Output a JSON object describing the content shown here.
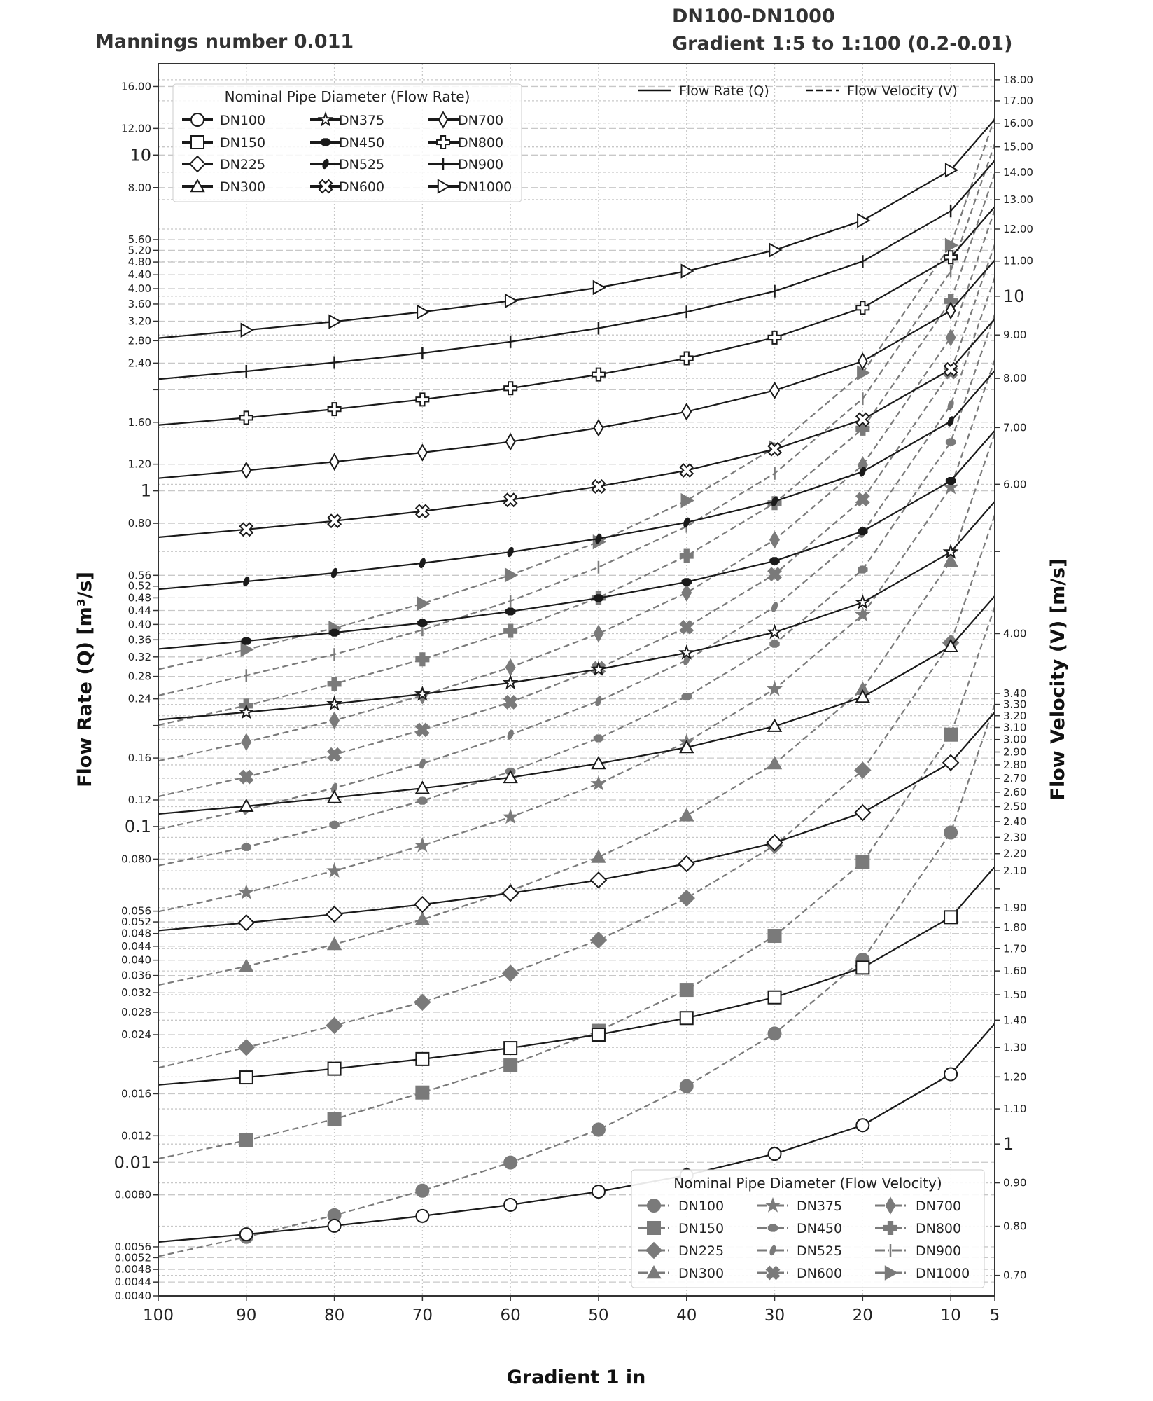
{
  "chart_data": {
    "type": "line",
    "title_left": "Mannings number 0.011",
    "title_right_line1": "DN100-DN1000",
    "title_right_line2": "Gradient 1:5 to 1:100 (0.2-0.01)",
    "xlabel": "Gradient 1 in",
    "ylabel_left": "Flow Rate (Q) [m³/s]",
    "ylabel_right": "Flow Velocity (V) [m/s]",
    "x_reversed": true,
    "xlim": [
      100,
      5
    ],
    "ylim_left": [
      0.004,
      18.7
    ],
    "ylim_right": [
      0.662,
      18.8
    ],
    "y_scale": "log",
    "grid": true,
    "x": [
      100,
      90,
      80,
      70,
      60,
      50,
      40,
      30,
      20,
      10,
      5
    ],
    "x_ticks": [
      "100",
      "90",
      "80",
      "70",
      "60",
      "50",
      "40",
      "30",
      "20",
      "10",
      "5"
    ],
    "x_tick_values": [
      100,
      90,
      80,
      70,
      60,
      50,
      40,
      30,
      20,
      10,
      5
    ],
    "left_ticks": [
      {
        "v": 16,
        "label": "16.00"
      },
      {
        "v": 12,
        "label": "12.00"
      },
      {
        "v": 10,
        "label": "10",
        "big": true
      },
      {
        "v": 8,
        "label": "8.00"
      },
      {
        "v": 5.6,
        "label": "5.60"
      },
      {
        "v": 5.2,
        "label": "5.20"
      },
      {
        "v": 4.8,
        "label": "4.80"
      },
      {
        "v": 4.4,
        "label": "4.40"
      },
      {
        "v": 4.0,
        "label": "4.00"
      },
      {
        "v": 3.6,
        "label": "3.60"
      },
      {
        "v": 3.2,
        "label": "3.20"
      },
      {
        "v": 2.8,
        "label": "2.80"
      },
      {
        "v": 2.4,
        "label": "2.40"
      },
      {
        "v": 2,
        "label": ""
      },
      {
        "v": 1.6,
        "label": "1.60"
      },
      {
        "v": 1.2,
        "label": "1.20"
      },
      {
        "v": 1,
        "label": "1",
        "big": true
      },
      {
        "v": 0.8,
        "label": "0.80"
      },
      {
        "v": 0.56,
        "label": "0.56"
      },
      {
        "v": 0.52,
        "label": "0.52"
      },
      {
        "v": 0.48,
        "label": "0.48"
      },
      {
        "v": 0.44,
        "label": "0.44"
      },
      {
        "v": 0.4,
        "label": "0.40"
      },
      {
        "v": 0.36,
        "label": "0.36"
      },
      {
        "v": 0.32,
        "label": "0.32"
      },
      {
        "v": 0.28,
        "label": "0.28"
      },
      {
        "v": 0.24,
        "label": "0.24"
      },
      {
        "v": 0.2,
        "label": ""
      },
      {
        "v": 0.16,
        "label": "0.16"
      },
      {
        "v": 0.12,
        "label": "0.12"
      },
      {
        "v": 0.1,
        "label": "0.1",
        "big": true
      },
      {
        "v": 0.08,
        "label": "0.080"
      },
      {
        "v": 0.056,
        "label": "0.056"
      },
      {
        "v": 0.052,
        "label": "0.052"
      },
      {
        "v": 0.048,
        "label": "0.048"
      },
      {
        "v": 0.044,
        "label": "0.044"
      },
      {
        "v": 0.04,
        "label": "0.040"
      },
      {
        "v": 0.036,
        "label": "0.036"
      },
      {
        "v": 0.032,
        "label": "0.032"
      },
      {
        "v": 0.028,
        "label": "0.028"
      },
      {
        "v": 0.024,
        "label": "0.024"
      },
      {
        "v": 0.02,
        "label": ""
      },
      {
        "v": 0.016,
        "label": "0.016"
      },
      {
        "v": 0.012,
        "label": "0.012"
      },
      {
        "v": 0.01,
        "label": "0.01",
        "big": true
      },
      {
        "v": 0.008,
        "label": "0.0080"
      },
      {
        "v": 0.0056,
        "label": "0.0056"
      },
      {
        "v": 0.0052,
        "label": "0.0052"
      },
      {
        "v": 0.0048,
        "label": "0.0048"
      },
      {
        "v": 0.0044,
        "label": "0.0044"
      },
      {
        "v": 0.004,
        "label": "0.0040"
      }
    ],
    "right_ticks": [
      {
        "v": 18,
        "label": "18.00"
      },
      {
        "v": 17,
        "label": "17.00"
      },
      {
        "v": 16,
        "label": "16.00"
      },
      {
        "v": 15,
        "label": "15.00"
      },
      {
        "v": 14,
        "label": "14.00"
      },
      {
        "v": 13,
        "label": "13.00"
      },
      {
        "v": 12,
        "label": "12.00"
      },
      {
        "v": 11,
        "label": "11.00"
      },
      {
        "v": 10,
        "label": "10",
        "big": true
      },
      {
        "v": 9,
        "label": "9.00"
      },
      {
        "v": 8,
        "label": "8.00"
      },
      {
        "v": 7,
        "label": "7.00"
      },
      {
        "v": 6,
        "label": "6.00"
      },
      {
        "v": 5,
        "label": ""
      },
      {
        "v": 4,
        "label": "4.00"
      },
      {
        "v": 3.4,
        "label": "3.40"
      },
      {
        "v": 3.3,
        "label": "3.30"
      },
      {
        "v": 3.2,
        "label": "3.20"
      },
      {
        "v": 3.1,
        "label": "3.10"
      },
      {
        "v": 3.0,
        "label": "3.00"
      },
      {
        "v": 2.9,
        "label": "2.90"
      },
      {
        "v": 2.8,
        "label": "2.80"
      },
      {
        "v": 2.7,
        "label": "2.70"
      },
      {
        "v": 2.6,
        "label": "2.60"
      },
      {
        "v": 2.5,
        "label": "2.50"
      },
      {
        "v": 2.4,
        "label": "2.40"
      },
      {
        "v": 2.3,
        "label": "2.30"
      },
      {
        "v": 2.2,
        "label": "2.20"
      },
      {
        "v": 2.1,
        "label": "2.10"
      },
      {
        "v": 2,
        "label": ""
      },
      {
        "v": 1.9,
        "label": "1.90"
      },
      {
        "v": 1.8,
        "label": "1.80"
      },
      {
        "v": 1.7,
        "label": "1.70"
      },
      {
        "v": 1.6,
        "label": "1.60"
      },
      {
        "v": 1.5,
        "label": "1.50"
      },
      {
        "v": 1.4,
        "label": "1.40"
      },
      {
        "v": 1.3,
        "label": "1.30"
      },
      {
        "v": 1.2,
        "label": "1.20"
      },
      {
        "v": 1.1,
        "label": "1.10"
      },
      {
        "v": 1,
        "label": "1",
        "big": true
      },
      {
        "v": 0.9,
        "label": "0.90"
      },
      {
        "v": 0.8,
        "label": "0.80"
      },
      {
        "v": 0.7,
        "label": "0.70"
      }
    ],
    "style_legend": {
      "flow_rate": "Flow Rate (Q)",
      "flow_velocity": "Flow Velocity (V)",
      "placement": "top-right"
    },
    "legend_flow_rate": {
      "title": "Nominal Pipe Diameter (Flow Rate)",
      "placement": "top-left"
    },
    "legend_flow_velocity": {
      "title": "Nominal Pipe Diameter (Flow Velocity)",
      "placement": "bottom-right"
    },
    "colors": {
      "flow_rate": "#1a1a1a",
      "flow_velocity": "#7a7a7a",
      "grid": "#c8c8c8"
    },
    "series": [
      {
        "name": "DN100",
        "marker": "circle",
        "Q": [
          0.00579,
          0.0061,
          0.00647,
          0.00692,
          0.00747,
          0.00818,
          0.00915,
          0.0106,
          0.0129,
          0.0183,
          0.0259
        ],
        "V": [
          0.737,
          0.777,
          0.824,
          0.881,
          0.951,
          1.04,
          1.17,
          1.35,
          1.65,
          2.33,
          3.3
        ]
      },
      {
        "name": "DN150",
        "marker": "square",
        "Q": [
          0.017,
          0.0179,
          0.019,
          0.0203,
          0.0219,
          0.024,
          0.0269,
          0.031,
          0.038,
          0.0537,
          0.0759
        ],
        "V": [
          0.961,
          1.01,
          1.07,
          1.15,
          1.24,
          1.36,
          1.52,
          1.76,
          2.15,
          3.04,
          4.3
        ]
      },
      {
        "name": "DN225",
        "marker": "diamond",
        "Q": [
          0.049,
          0.0517,
          0.0548,
          0.0586,
          0.0633,
          0.0693,
          0.0775,
          0.0895,
          0.11,
          0.155,
          0.219
        ],
        "V": [
          1.23,
          1.3,
          1.38,
          1.47,
          1.59,
          1.74,
          1.95,
          2.25,
          2.76,
          3.9,
          5.52
        ]
      },
      {
        "name": "DN300",
        "marker": "triangle",
        "Q": [
          0.109,
          0.115,
          0.122,
          0.13,
          0.14,
          0.154,
          0.172,
          0.199,
          0.243,
          0.344,
          0.486
        ],
        "V": [
          1.54,
          1.62,
          1.72,
          1.84,
          1.99,
          2.18,
          2.44,
          2.81,
          3.44,
          4.87,
          6.89
        ]
      },
      {
        "name": "DN375",
        "marker": "star",
        "Q": [
          0.208,
          0.219,
          0.232,
          0.248,
          0.268,
          0.294,
          0.329,
          0.379,
          0.465,
          0.657,
          0.929
        ],
        "V": [
          1.88,
          1.98,
          2.1,
          2.25,
          2.43,
          2.66,
          2.98,
          3.44,
          4.21,
          5.95,
          8.41
        ]
      },
      {
        "name": "DN450",
        "marker": "octagon",
        "Q": [
          0.338,
          0.357,
          0.378,
          0.404,
          0.437,
          0.479,
          0.535,
          0.618,
          0.757,
          1.07,
          1.51
        ],
        "V": [
          2.13,
          2.24,
          2.38,
          2.54,
          2.75,
          3.01,
          3.37,
          3.89,
          4.76,
          6.73,
          9.52
        ]
      },
      {
        "name": "DN525",
        "marker": "f",
        "Q": [
          0.509,
          0.537,
          0.569,
          0.609,
          0.657,
          0.72,
          0.805,
          0.93,
          1.14,
          1.61,
          2.28
        ],
        "V": [
          2.35,
          2.48,
          2.63,
          2.81,
          3.04,
          3.33,
          3.72,
          4.3,
          5.26,
          7.44,
          10.52
        ]
      },
      {
        "name": "DN600",
        "marker": "x",
        "Q": [
          0.727,
          0.767,
          0.813,
          0.869,
          0.939,
          1.03,
          1.15,
          1.33,
          1.63,
          2.3,
          3.25
        ],
        "V": [
          2.57,
          2.71,
          2.88,
          3.08,
          3.32,
          3.64,
          4.07,
          4.7,
          5.76,
          8.14,
          11.51
        ]
      },
      {
        "name": "DN700",
        "marker": "thin_diamond",
        "Q": [
          1.09,
          1.15,
          1.22,
          1.3,
          1.4,
          1.54,
          1.72,
          1.99,
          2.43,
          3.44,
          4.86
        ],
        "V": [
          2.83,
          2.98,
          3.16,
          3.38,
          3.65,
          4.0,
          4.47,
          5.16,
          6.32,
          8.94,
          12.64
        ]
      },
      {
        "name": "DN800",
        "marker": "plus_filled",
        "Q": [
          1.57,
          1.65,
          1.75,
          1.87,
          2.02,
          2.22,
          2.48,
          2.86,
          3.51,
          4.96,
          7.01
        ],
        "V": [
          3.12,
          3.29,
          3.49,
          3.73,
          4.03,
          4.41,
          4.94,
          5.7,
          6.98,
          9.87,
          13.96
        ]
      },
      {
        "name": "DN900",
        "marker": "vline",
        "Q": [
          2.15,
          2.27,
          2.41,
          2.57,
          2.78,
          3.05,
          3.41,
          3.93,
          4.82,
          6.81,
          9.63
        ],
        "V": [
          3.38,
          3.57,
          3.78,
          4.04,
          4.37,
          4.79,
          5.35,
          6.18,
          7.57,
          10.7,
          15.13
        ]
      },
      {
        "name": "DN1000",
        "marker": "triangle_right",
        "Q": [
          2.85,
          3.01,
          3.19,
          3.41,
          3.68,
          4.03,
          4.51,
          5.21,
          6.38,
          9.02,
          12.76
        ],
        "V": [
          3.63,
          3.83,
          4.06,
          4.34,
          4.69,
          5.13,
          5.74,
          6.63,
          8.12,
          11.48,
          16.24
        ]
      }
    ]
  }
}
